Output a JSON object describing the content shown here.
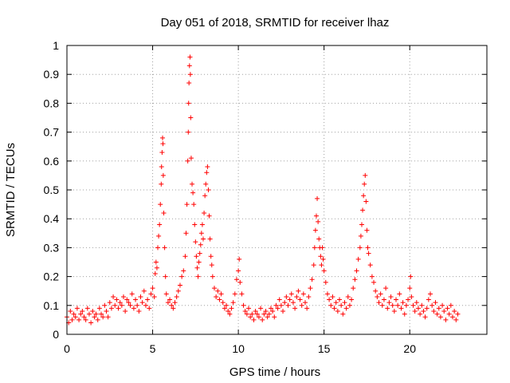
{
  "chart_data": {
    "type": "scatter",
    "title": "Day 051 of 2018, SRMTID for receiver lhaz",
    "xlabel": "GPS time / hours",
    "ylabel": "SRMTID / TECUs",
    "xlim": [
      0,
      24.5
    ],
    "ylim": [
      0,
      1
    ],
    "xticks": [
      0,
      5,
      10,
      15,
      20
    ],
    "xtick_labels": [
      "0",
      "5",
      "10",
      "15",
      "20"
    ],
    "yticks": [
      0,
      0.1,
      0.2,
      0.3,
      0.4,
      0.5,
      0.6,
      0.7,
      0.8,
      0.9,
      1
    ],
    "ytick_labels": [
      "0",
      "0.1",
      "0.2",
      "0.3",
      "0.4",
      "0.5",
      "0.6",
      "0.7",
      "0.8",
      "0.9",
      "1"
    ],
    "grid": true,
    "marker": "+",
    "color": "#ff0000",
    "series": [
      {
        "name": "SRMTID",
        "points": [
          [
            0.0,
            0.06
          ],
          [
            0.1,
            0.04
          ],
          [
            0.2,
            0.08
          ],
          [
            0.3,
            0.05
          ],
          [
            0.4,
            0.07
          ],
          [
            0.5,
            0.06
          ],
          [
            0.6,
            0.09
          ],
          [
            0.7,
            0.05
          ],
          [
            0.8,
            0.07
          ],
          [
            0.9,
            0.08
          ],
          [
            1.0,
            0.06
          ],
          [
            1.1,
            0.05
          ],
          [
            1.2,
            0.09
          ],
          [
            1.3,
            0.07
          ],
          [
            1.4,
            0.04
          ],
          [
            1.5,
            0.08
          ],
          [
            1.6,
            0.06
          ],
          [
            1.7,
            0.07
          ],
          [
            1.8,
            0.05
          ],
          [
            1.9,
            0.09
          ],
          [
            2.0,
            0.07
          ],
          [
            2.1,
            0.06
          ],
          [
            2.2,
            0.1
          ],
          [
            2.3,
            0.08
          ],
          [
            2.4,
            0.06
          ],
          [
            2.5,
            0.11
          ],
          [
            2.6,
            0.09
          ],
          [
            2.7,
            0.13
          ],
          [
            2.8,
            0.1
          ],
          [
            2.9,
            0.12
          ],
          [
            3.0,
            0.09
          ],
          [
            3.1,
            0.11
          ],
          [
            3.2,
            0.1
          ],
          [
            3.3,
            0.13
          ],
          [
            3.4,
            0.08
          ],
          [
            3.5,
            0.12
          ],
          [
            3.6,
            0.11
          ],
          [
            3.7,
            0.1
          ],
          [
            3.8,
            0.14
          ],
          [
            3.9,
            0.09
          ],
          [
            4.0,
            0.12
          ],
          [
            4.1,
            0.1
          ],
          [
            4.2,
            0.08
          ],
          [
            4.3,
            0.13
          ],
          [
            4.4,
            0.11
          ],
          [
            4.5,
            0.15
          ],
          [
            4.6,
            0.1
          ],
          [
            4.7,
            0.12
          ],
          [
            4.8,
            0.09
          ],
          [
            4.9,
            0.14
          ],
          [
            5.0,
            0.16
          ],
          [
            5.1,
            0.13
          ],
          [
            5.15,
            0.21
          ],
          [
            5.2,
            0.25
          ],
          [
            5.25,
            0.23
          ],
          [
            5.3,
            0.3
          ],
          [
            5.35,
            0.34
          ],
          [
            5.4,
            0.38
          ],
          [
            5.45,
            0.45
          ],
          [
            5.5,
            0.52
          ],
          [
            5.52,
            0.58
          ],
          [
            5.55,
            0.63
          ],
          [
            5.58,
            0.68
          ],
          [
            5.6,
            0.66
          ],
          [
            5.62,
            0.55
          ],
          [
            5.65,
            0.42
          ],
          [
            5.7,
            0.3
          ],
          [
            5.75,
            0.2
          ],
          [
            5.8,
            0.14
          ],
          [
            5.9,
            0.11
          ],
          [
            6.0,
            0.12
          ],
          [
            6.1,
            0.1
          ],
          [
            6.2,
            0.09
          ],
          [
            6.3,
            0.11
          ],
          [
            6.4,
            0.13
          ],
          [
            6.5,
            0.15
          ],
          [
            6.6,
            0.17
          ],
          [
            6.7,
            0.2
          ],
          [
            6.8,
            0.22
          ],
          [
            6.9,
            0.27
          ],
          [
            6.95,
            0.35
          ],
          [
            7.0,
            0.45
          ],
          [
            7.05,
            0.6
          ],
          [
            7.08,
            0.7
          ],
          [
            7.1,
            0.8
          ],
          [
            7.12,
            0.87
          ],
          [
            7.15,
            0.93
          ],
          [
            7.18,
            0.96
          ],
          [
            7.2,
            0.9
          ],
          [
            7.22,
            0.75
          ],
          [
            7.25,
            0.61
          ],
          [
            7.3,
            0.52
          ],
          [
            7.35,
            0.49
          ],
          [
            7.4,
            0.45
          ],
          [
            7.45,
            0.38
          ],
          [
            7.5,
            0.32
          ],
          [
            7.55,
            0.27
          ],
          [
            7.6,
            0.23
          ],
          [
            7.65,
            0.2
          ],
          [
            7.7,
            0.25
          ],
          [
            7.75,
            0.28
          ],
          [
            7.8,
            0.31
          ],
          [
            7.85,
            0.35
          ],
          [
            7.9,
            0.38
          ],
          [
            7.95,
            0.33
          ],
          [
            8.0,
            0.42
          ],
          [
            8.05,
            0.48
          ],
          [
            8.1,
            0.52
          ],
          [
            8.15,
            0.56
          ],
          [
            8.2,
            0.58
          ],
          [
            8.25,
            0.5
          ],
          [
            8.3,
            0.41
          ],
          [
            8.35,
            0.33
          ],
          [
            8.4,
            0.27
          ],
          [
            8.45,
            0.24
          ],
          [
            8.5,
            0.2
          ],
          [
            8.6,
            0.16
          ],
          [
            8.7,
            0.13
          ],
          [
            8.8,
            0.15
          ],
          [
            8.9,
            0.12
          ],
          [
            9.0,
            0.14
          ],
          [
            9.1,
            0.11
          ],
          [
            9.2,
            0.09
          ],
          [
            9.3,
            0.1
          ],
          [
            9.4,
            0.08
          ],
          [
            9.5,
            0.07
          ],
          [
            9.6,
            0.09
          ],
          [
            9.7,
            0.11
          ],
          [
            9.8,
            0.14
          ],
          [
            9.9,
            0.19
          ],
          [
            10.0,
            0.22
          ],
          [
            10.05,
            0.26
          ],
          [
            10.1,
            0.18
          ],
          [
            10.2,
            0.14
          ],
          [
            10.3,
            0.1
          ],
          [
            10.4,
            0.08
          ],
          [
            10.5,
            0.07
          ],
          [
            10.6,
            0.09
          ],
          [
            10.7,
            0.06
          ],
          [
            10.8,
            0.07
          ],
          [
            10.9,
            0.05
          ],
          [
            11.0,
            0.08
          ],
          [
            11.1,
            0.07
          ],
          [
            11.2,
            0.06
          ],
          [
            11.3,
            0.09
          ],
          [
            11.4,
            0.05
          ],
          [
            11.5,
            0.07
          ],
          [
            11.6,
            0.08
          ],
          [
            11.7,
            0.06
          ],
          [
            11.8,
            0.07
          ],
          [
            11.9,
            0.09
          ],
          [
            12.0,
            0.08
          ],
          [
            12.1,
            0.06
          ],
          [
            12.2,
            0.1
          ],
          [
            12.3,
            0.09
          ],
          [
            12.4,
            0.12
          ],
          [
            12.5,
            0.1
          ],
          [
            12.6,
            0.08
          ],
          [
            12.7,
            0.11
          ],
          [
            12.8,
            0.13
          ],
          [
            12.9,
            0.1
          ],
          [
            13.0,
            0.12
          ],
          [
            13.1,
            0.14
          ],
          [
            13.2,
            0.11
          ],
          [
            13.3,
            0.09
          ],
          [
            13.4,
            0.13
          ],
          [
            13.5,
            0.15
          ],
          [
            13.6,
            0.12
          ],
          [
            13.7,
            0.1
          ],
          [
            13.8,
            0.14
          ],
          [
            13.9,
            0.11
          ],
          [
            14.0,
            0.09
          ],
          [
            14.1,
            0.13
          ],
          [
            14.2,
            0.16
          ],
          [
            14.3,
            0.19
          ],
          [
            14.4,
            0.24
          ],
          [
            14.45,
            0.3
          ],
          [
            14.5,
            0.36
          ],
          [
            14.55,
            0.41
          ],
          [
            14.6,
            0.47
          ],
          [
            14.65,
            0.39
          ],
          [
            14.7,
            0.33
          ],
          [
            14.75,
            0.3
          ],
          [
            14.8,
            0.27
          ],
          [
            14.85,
            0.24
          ],
          [
            14.9,
            0.3
          ],
          [
            14.95,
            0.26
          ],
          [
            15.0,
            0.22
          ],
          [
            15.1,
            0.18
          ],
          [
            15.2,
            0.14
          ],
          [
            15.3,
            0.12
          ],
          [
            15.4,
            0.1
          ],
          [
            15.5,
            0.13
          ],
          [
            15.6,
            0.09
          ],
          [
            15.7,
            0.11
          ],
          [
            15.8,
            0.08
          ],
          [
            15.9,
            0.12
          ],
          [
            16.0,
            0.1
          ],
          [
            16.1,
            0.07
          ],
          [
            16.2,
            0.11
          ],
          [
            16.3,
            0.09
          ],
          [
            16.4,
            0.13
          ],
          [
            16.5,
            0.1
          ],
          [
            16.6,
            0.12
          ],
          [
            16.7,
            0.16
          ],
          [
            16.8,
            0.19
          ],
          [
            16.9,
            0.22
          ],
          [
            17.0,
            0.26
          ],
          [
            17.1,
            0.3
          ],
          [
            17.15,
            0.34
          ],
          [
            17.2,
            0.38
          ],
          [
            17.25,
            0.43
          ],
          [
            17.3,
            0.48
          ],
          [
            17.35,
            0.52
          ],
          [
            17.4,
            0.55
          ],
          [
            17.45,
            0.46
          ],
          [
            17.5,
            0.36
          ],
          [
            17.55,
            0.3
          ],
          [
            17.6,
            0.28
          ],
          [
            17.7,
            0.24
          ],
          [
            17.8,
            0.2
          ],
          [
            17.9,
            0.18
          ],
          [
            18.0,
            0.15
          ],
          [
            18.1,
            0.13
          ],
          [
            18.2,
            0.11
          ],
          [
            18.3,
            0.14
          ],
          [
            18.4,
            0.1
          ],
          [
            18.5,
            0.12
          ],
          [
            18.6,
            0.16
          ],
          [
            18.7,
            0.09
          ],
          [
            18.8,
            0.11
          ],
          [
            18.9,
            0.13
          ],
          [
            19.0,
            0.1
          ],
          [
            19.1,
            0.08
          ],
          [
            19.2,
            0.12
          ],
          [
            19.3,
            0.1
          ],
          [
            19.4,
            0.14
          ],
          [
            19.5,
            0.09
          ],
          [
            19.6,
            0.11
          ],
          [
            19.7,
            0.07
          ],
          [
            19.8,
            0.1
          ],
          [
            19.9,
            0.12
          ],
          [
            20.0,
            0.16
          ],
          [
            20.05,
            0.2
          ],
          [
            20.1,
            0.13
          ],
          [
            20.2,
            0.1
          ],
          [
            20.3,
            0.08
          ],
          [
            20.4,
            0.11
          ],
          [
            20.5,
            0.09
          ],
          [
            20.6,
            0.07
          ],
          [
            20.7,
            0.1
          ],
          [
            20.8,
            0.08
          ],
          [
            20.9,
            0.06
          ],
          [
            21.0,
            0.09
          ],
          [
            21.1,
            0.12
          ],
          [
            21.2,
            0.14
          ],
          [
            21.3,
            0.1
          ],
          [
            21.4,
            0.08
          ],
          [
            21.5,
            0.11
          ],
          [
            21.6,
            0.07
          ],
          [
            21.7,
            0.09
          ],
          [
            21.8,
            0.06
          ],
          [
            21.9,
            0.1
          ],
          [
            22.0,
            0.08
          ],
          [
            22.1,
            0.05
          ],
          [
            22.2,
            0.09
          ],
          [
            22.3,
            0.07
          ],
          [
            22.4,
            0.1
          ],
          [
            22.5,
            0.06
          ],
          [
            22.6,
            0.08
          ],
          [
            22.7,
            0.05
          ],
          [
            22.8,
            0.07
          ]
        ]
      }
    ]
  }
}
